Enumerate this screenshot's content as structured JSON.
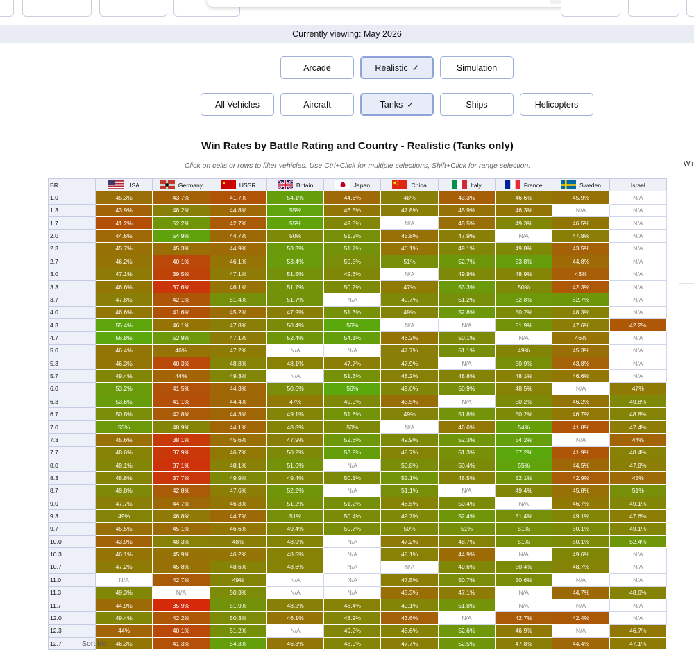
{
  "banner": "Currently viewing: May 2026",
  "modes": [
    "Arcade",
    "Realistic",
    "Simulation"
  ],
  "selected_mode": "Realistic",
  "vehicle_types": [
    "All Vehicles",
    "Aircraft",
    "Tanks",
    "Ships",
    "Helicopters"
  ],
  "selected_type": "Tanks",
  "check_glyph": "✓",
  "title": "Win Rates by Battle Rating and Country - Realistic (Tanks only)",
  "subtitle": "Click on cells or rows to filter vehicles. Use Ctrl+Click for multiple selections, Shift+Click for range selection.",
  "side_label": "Win",
  "sort_by": "Sort by:",
  "colors": {
    "low": "#d42a0a",
    "mid": "#8f7a05",
    "high": "#5aa80c",
    "na_bg": "#ffffff"
  },
  "chart_data": {
    "type": "heatmap",
    "title": "Win Rates by Battle Rating and Country - Realistic (Tanks only)",
    "row_header": "BR",
    "columns": [
      "USA",
      "Germany",
      "USSR",
      "Britain",
      "Japan",
      "China",
      "Italy",
      "France",
      "Sweden",
      "Israel"
    ],
    "column_flags": [
      "usa-flag",
      "germany-flag",
      "ussr-flag",
      "britain-flag",
      "japan-flag",
      "china-flag",
      "italy-flag",
      "france-flag",
      "sweden-flag",
      "none"
    ],
    "rows": [
      "1.0",
      "1.3",
      "1.7",
      "2.0",
      "2.3",
      "2.7",
      "3.0",
      "3.3",
      "3.7",
      "4.0",
      "4.3",
      "4.7",
      "5.0",
      "5.3",
      "5.7",
      "6.0",
      "6.3",
      "6.7",
      "7.0",
      "7.3",
      "7.7",
      "8.0",
      "8.3",
      "8.7",
      "9.0",
      "9.3",
      "9.7",
      "10.0",
      "10.3",
      "10.7",
      "11.0",
      "11.3",
      "11.7",
      "12.0",
      "12.3",
      "12.7"
    ],
    "na_label": "N/A",
    "values": [
      [
        45.3,
        43.7,
        41.7,
        54.1,
        44.6,
        48,
        43.3,
        46.6,
        45.9,
        null
      ],
      [
        43.9,
        48.2,
        44.8,
        55,
        46.5,
        47.8,
        45.9,
        46.3,
        null,
        null
      ],
      [
        41.2,
        52.2,
        42.7,
        55,
        49.3,
        null,
        45.5,
        49.3,
        46.5,
        null
      ],
      [
        44.6,
        54.9,
        44.7,
        50,
        51.2,
        45.8,
        47.9,
        null,
        47.8,
        null
      ],
      [
        45.7,
        45.3,
        44.9,
        53.3,
        51.7,
        46.1,
        49.1,
        49.8,
        43.5,
        null
      ],
      [
        46.2,
        40.1,
        46.1,
        53.4,
        50.5,
        51,
        52.7,
        53.8,
        44.8,
        null
      ],
      [
        47.1,
        39.5,
        47.1,
        51.5,
        49.6,
        null,
        49.9,
        48.9,
        43,
        null
      ],
      [
        46.6,
        37.6,
        46.1,
        51.7,
        50.2,
        47,
        53.3,
        50,
        42.3,
        null
      ],
      [
        47.8,
        42.1,
        51.4,
        51.7,
        null,
        49.7,
        51.2,
        52.8,
        52.7,
        null
      ],
      [
        46.6,
        41.6,
        45.2,
        47.9,
        51.3,
        49,
        52.8,
        50.2,
        48.3,
        null
      ],
      [
        55.4,
        46.1,
        47.8,
        50.4,
        56,
        null,
        null,
        51.9,
        47.6,
        42.2
      ],
      [
        56.8,
        52.9,
        47.1,
        52.4,
        54.1,
        46.2,
        50.1,
        null,
        46,
        null
      ],
      [
        46.4,
        46,
        47.2,
        null,
        null,
        47.7,
        51.1,
        49,
        45.3,
        null
      ],
      [
        46.3,
        40.3,
        48.8,
        48.1,
        47.7,
        47.9,
        null,
        50.9,
        43.8,
        null
      ],
      [
        49.4,
        44,
        49.3,
        null,
        51.3,
        48.2,
        48.8,
        48.1,
        46.6,
        null
      ],
      [
        53.2,
        41.5,
        44.3,
        50.6,
        56,
        49.6,
        50.9,
        48.5,
        null,
        47
      ],
      [
        53.6,
        41.1,
        44.4,
        47,
        49.9,
        45.5,
        null,
        50.2,
        46.2,
        49.8
      ],
      [
        50.8,
        42.8,
        44.3,
        49.1,
        51.8,
        49,
        51.8,
        50.2,
        46.7,
        48.8
      ],
      [
        53,
        48.9,
        44.1,
        48.8,
        50,
        null,
        46.6,
        54,
        41.8,
        47.4
      ],
      [
        45.6,
        38.1,
        45.6,
        47.9,
        52.6,
        49.9,
        52.3,
        54.2,
        null,
        44
      ],
      [
        48.6,
        37.9,
        46.7,
        50.2,
        53.9,
        48.7,
        51.3,
        57.2,
        41.9,
        48.4
      ],
      [
        49.1,
        37.1,
        48.1,
        51.6,
        null,
        50.8,
        50.4,
        55,
        44.5,
        47.8
      ],
      [
        48.8,
        37.7,
        49.9,
        49.4,
        50.1,
        52.1,
        48.5,
        52.1,
        42.9,
        45
      ],
      [
        49.8,
        42.8,
        47.6,
        52.2,
        null,
        51.1,
        null,
        49.4,
        45.8,
        51
      ],
      [
        47.7,
        44.7,
        46.3,
        51.2,
        51.2,
        48.5,
        50.4,
        null,
        46.7,
        49.1
      ],
      [
        49,
        46.8,
        44.7,
        51,
        50.4,
        49.7,
        52.4,
        51.4,
        49.1,
        47.6
      ],
      [
        45.5,
        45.1,
        46.6,
        49.4,
        50.7,
        50,
        51,
        51,
        50.1,
        49.1
      ],
      [
        43.9,
        48.3,
        48,
        48.9,
        null,
        47.2,
        48.7,
        51,
        50.1,
        52.4
      ],
      [
        46.1,
        45.9,
        46.2,
        48.5,
        null,
        48.1,
        44.9,
        null,
        49.6,
        null
      ],
      [
        47.2,
        45.8,
        48.6,
        48.6,
        null,
        null,
        49.6,
        50.4,
        48.7,
        null
      ],
      [
        null,
        42.7,
        49,
        null,
        null,
        47.5,
        50.7,
        50.6,
        null,
        null
      ],
      [
        49.3,
        null,
        50.3,
        null,
        null,
        45.3,
        47.1,
        null,
        44.7,
        48.6
      ],
      [
        44.9,
        35.9,
        51.9,
        48.2,
        48.4,
        49.1,
        51.8,
        null,
        null,
        null
      ],
      [
        49.4,
        42.2,
        50.3,
        46.1,
        48.9,
        43.6,
        null,
        42.7,
        42.4,
        null
      ],
      [
        44,
        40.1,
        51.2,
        null,
        49.2,
        48.6,
        52.6,
        46.9,
        null,
        46.7
      ],
      [
        46.3,
        41.3,
        54.3,
        46.3,
        48.9,
        47.7,
        52.5,
        47.8,
        44.4,
        47.1
      ]
    ]
  }
}
